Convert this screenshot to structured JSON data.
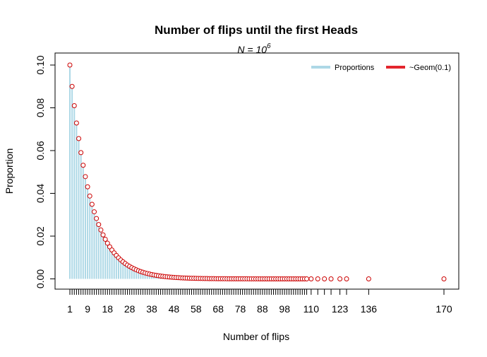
{
  "chart_data": {
    "type": "bar",
    "title": "Number of flips until the first Heads",
    "subtitle": {
      "base": "N = 10",
      "exponent": "6"
    },
    "xlabel": "Number of flips",
    "ylabel": "Proportion",
    "ylim": [
      0,
      0.1
    ],
    "y_ticks": [
      "0.00",
      "0.02",
      "0.04",
      "0.06",
      "0.08",
      "0.10"
    ],
    "y_tick_values": [
      0,
      0.02,
      0.04,
      0.06,
      0.08,
      0.1
    ],
    "x_tick_labels": [
      "1",
      "9",
      "18",
      "28",
      "38",
      "48",
      "58",
      "68",
      "78",
      "88",
      "98",
      "110",
      "123",
      "136",
      "170"
    ],
    "x_range": [
      1,
      170
    ],
    "distribution": {
      "name": "Geom(0.1)",
      "p": 0.1,
      "support_start": 1
    },
    "bar_positions": [
      1,
      2,
      3,
      4,
      5,
      6,
      7,
      8,
      9,
      10,
      11,
      12,
      13,
      14,
      15,
      16,
      17,
      18,
      19,
      20,
      21,
      22,
      23,
      24,
      25,
      26,
      27,
      28,
      29,
      30,
      31,
      32,
      33,
      34,
      35,
      36,
      37,
      38,
      39,
      40,
      41,
      42,
      43,
      44,
      45,
      46,
      47,
      48,
      49,
      50,
      51,
      52,
      53,
      54,
      55,
      56,
      57,
      58,
      59,
      60,
      61,
      62,
      63,
      64,
      65,
      66,
      67,
      68,
      69,
      70,
      71,
      72,
      73,
      74,
      75,
      76,
      77,
      78,
      79,
      80,
      81,
      82,
      83,
      84,
      85,
      86,
      87,
      88,
      89,
      90,
      91,
      92,
      93,
      94,
      95,
      96,
      97,
      98,
      99,
      100,
      101,
      102,
      103,
      104,
      105,
      106,
      107,
      108,
      110,
      113,
      116,
      119,
      123,
      126,
      136,
      170
    ],
    "legend": {
      "position": "top-right",
      "items": [
        {
          "label": "Proportions",
          "color": "#add8e6"
        },
        {
          "label": "~Geom(0.1)",
          "color": "#e3262d"
        }
      ]
    },
    "colors": {
      "bars": "#add8e6",
      "points": "#cc0000",
      "axis": "#000000"
    }
  }
}
